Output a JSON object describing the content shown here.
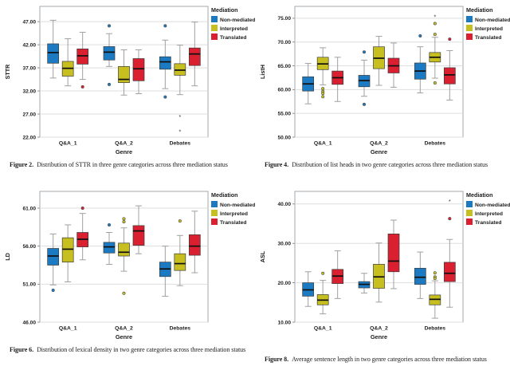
{
  "page": {
    "background": "#ffffff"
  },
  "legend": {
    "title": "Mediation",
    "items": [
      {
        "label": "Non-mediated",
        "color": "#1b7ac1"
      },
      {
        "label": "Interpreted",
        "color": "#c6bf1f"
      },
      {
        "label": "Translated",
        "color": "#d91f30"
      }
    ]
  },
  "chart_data": [
    {
      "id": "fig2",
      "type": "box",
      "ylabel": "STTR",
      "xlabel": "Genre",
      "ydomain": [
        22,
        50.3
      ],
      "yticks": [
        {
          "v": 47,
          "label": "47.00"
        },
        {
          "v": 42,
          "label": "42.00"
        },
        {
          "v": 37,
          "label": "37.00"
        },
        {
          "v": 32,
          "label": "32.00"
        },
        {
          "v": 27,
          "label": "27.00"
        },
        {
          "v": 22,
          "label": "22.00"
        }
      ],
      "categories": [
        "Q&A_1",
        "Q&A_2",
        "Debates"
      ],
      "series": [
        {
          "name": "Non-mediated",
          "boxes": [
            {
              "lo": 34.8,
              "q1": 38.0,
              "med": 40.3,
              "q3": 42.2,
              "hi": 47.3
            },
            {
              "lo": 37.3,
              "q1": 38.7,
              "med": 40.4,
              "q3": 41.6,
              "hi": 44.4,
              "out": [
                46.1,
                33.4
              ]
            },
            {
              "lo": 32.5,
              "q1": 36.7,
              "med": 38.3,
              "q3": 39.4,
              "hi": 43.0,
              "out": [
                46.1,
                30.7
              ]
            }
          ]
        },
        {
          "name": "Interpreted",
          "boxes": [
            {
              "lo": 33.1,
              "q1": 35.2,
              "med": 36.9,
              "q3": 38.4,
              "hi": 43.3
            },
            {
              "lo": 31.1,
              "q1": 33.8,
              "med": 34.5,
              "q3": 37.3,
              "hi": 40.9
            },
            {
              "lo": 31.2,
              "q1": 35.4,
              "med": 36.5,
              "q3": 37.9,
              "hi": 41.9,
              "ext": [
                26.4,
                23.2
              ]
            }
          ]
        },
        {
          "name": "Translated",
          "boxes": [
            {
              "lo": 34.5,
              "q1": 37.8,
              "med": 39.6,
              "q3": 41.1,
              "hi": 44.7,
              "out": [
                32.9
              ]
            },
            {
              "lo": 31.4,
              "q1": 34.2,
              "med": 36.8,
              "q3": 39.0,
              "hi": 40.9
            },
            {
              "lo": 33.1,
              "q1": 37.5,
              "med": 40.0,
              "q3": 41.3,
              "hi": 46.9
            }
          ]
        }
      ],
      "caption": {
        "label": "Figure 2.",
        "text": "Distribution of STTR in three genre categories across three mediation status"
      }
    },
    {
      "id": "fig4",
      "type": "box",
      "ylabel": "ListH",
      "xlabel": "Genre",
      "ydomain": [
        50,
        77.5
      ],
      "yticks": [
        {
          "v": 75,
          "label": "75.00"
        },
        {
          "v": 70,
          "label": "70.00"
        },
        {
          "v": 65,
          "label": "65.00"
        },
        {
          "v": 60,
          "label": "60.00"
        },
        {
          "v": 55,
          "label": "55.00"
        },
        {
          "v": 50,
          "label": "50.00"
        }
      ],
      "categories": [
        "Q&A_1",
        "Q&A_2",
        "Debates"
      ],
      "series": [
        {
          "name": "Non-mediated",
          "boxes": [
            {
              "lo": 57.0,
              "q1": 59.7,
              "med": 61.2,
              "q3": 62.7,
              "hi": 65.5
            },
            {
              "lo": 58.6,
              "q1": 60.6,
              "med": 61.9,
              "q3": 63.0,
              "hi": 66.2,
              "out": [
                67.9,
                56.9
              ]
            },
            {
              "lo": 59.3,
              "q1": 62.2,
              "med": 63.9,
              "q3": 65.6,
              "hi": 69.0,
              "out": [
                71.3
              ]
            }
          ]
        },
        {
          "name": "Interpreted",
          "boxes": [
            {
              "lo": 61.0,
              "q1": 64.2,
              "med": 65.4,
              "q3": 66.8,
              "hi": 68.8,
              "out": [
                60.2,
                59.6,
                59.2,
                58.5
              ]
            },
            {
              "lo": 60.9,
              "q1": 64.4,
              "med": 66.6,
              "q3": 69.0,
              "hi": 71.2
            },
            {
              "lo": 62.4,
              "q1": 65.8,
              "med": 66.8,
              "q3": 67.8,
              "hi": 71.0,
              "out": [
                73.9,
                71.6,
                61.4
              ],
              "ext": [
                75.3
              ]
            }
          ]
        },
        {
          "name": "Translated",
          "boxes": [
            {
              "lo": 57.5,
              "q1": 61.1,
              "med": 62.5,
              "q3": 63.9,
              "hi": 66.8
            },
            {
              "lo": 60.5,
              "q1": 63.5,
              "med": 65.0,
              "q3": 66.6,
              "hi": 69.8
            },
            {
              "lo": 57.8,
              "q1": 61.2,
              "med": 63.1,
              "q3": 64.6,
              "hi": 68.2,
              "out": [
                70.6
              ]
            }
          ]
        }
      ],
      "caption": {
        "label": "Figure 4.",
        "text": "Distribution of list heads in two genre categories across three mediation status"
      }
    },
    {
      "id": "fig6",
      "type": "box",
      "ylabel": "LD",
      "xlabel": "Genre",
      "ydomain": [
        46,
        63.2
      ],
      "yticks": [
        {
          "v": 61,
          "label": "61.00"
        },
        {
          "v": 56,
          "label": "56.00"
        },
        {
          "v": 51,
          "label": "51.00"
        },
        {
          "v": 46,
          "label": "46.00"
        }
      ],
      "categories": [
        "Q&A_1",
        "Q&A_2",
        "Debates"
      ],
      "series": [
        {
          "name": "Non-mediated",
          "boxes": [
            {
              "lo": 50.9,
              "q1": 53.5,
              "med": 54.7,
              "q3": 55.7,
              "hi": 57.6,
              "out": [
                50.2
              ]
            },
            {
              "lo": 53.6,
              "q1": 55.1,
              "med": 55.9,
              "q3": 56.5,
              "hi": 57.8,
              "out": [
                58.8
              ]
            },
            {
              "lo": 49.4,
              "q1": 52.0,
              "med": 53.0,
              "q3": 53.9,
              "hi": 56.0
            }
          ]
        },
        {
          "name": "Interpreted",
          "boxes": [
            {
              "lo": 51.3,
              "q1": 53.9,
              "med": 55.6,
              "q3": 57.1,
              "hi": 58.8
            },
            {
              "lo": 52.7,
              "q1": 54.7,
              "med": 55.2,
              "q3": 56.4,
              "hi": 58.4,
              "out": [
                59.6,
                59.2,
                49.8
              ]
            },
            {
              "lo": 50.8,
              "q1": 52.8,
              "med": 53.7,
              "q3": 55.0,
              "hi": 57.4,
              "out": [
                59.3
              ]
            }
          ]
        },
        {
          "name": "Translated",
          "boxes": [
            {
              "lo": 54.2,
              "q1": 55.9,
              "med": 56.9,
              "q3": 57.8,
              "hi": 60.3,
              "out": [
                61.0
              ]
            },
            {
              "lo": 55.0,
              "q1": 56.1,
              "med": 58.0,
              "q3": 58.7,
              "hi": 61.3
            },
            {
              "lo": 52.5,
              "q1": 54.8,
              "med": 56.0,
              "q3": 57.5,
              "hi": 60.6
            }
          ]
        }
      ],
      "caption": {
        "label": "Figure 6.",
        "text": "Distribution of lexical density in two genre categories across three mediation status"
      }
    },
    {
      "id": "fig8",
      "type": "box",
      "ylabel": "ASL",
      "xlabel": "Genre",
      "ydomain": [
        10,
        43.2
      ],
      "yticks": [
        {
          "v": 40,
          "label": "40.00"
        },
        {
          "v": 30,
          "label": "30.00"
        },
        {
          "v": 20,
          "label": "20.00"
        },
        {
          "v": 10,
          "label": "10.00"
        }
      ],
      "categories": [
        "Q&A_1",
        "Q&A_2",
        "Debates"
      ],
      "series": [
        {
          "name": "Non-mediated",
          "boxes": [
            {
              "lo": 14.0,
              "q1": 16.6,
              "med": 18.2,
              "q3": 20.0,
              "hi": 22.8
            },
            {
              "lo": 17.4,
              "q1": 18.7,
              "med": 19.6,
              "q3": 20.3,
              "hi": 22.4
            },
            {
              "lo": 16.0,
              "q1": 19.6,
              "med": 21.4,
              "q3": 23.7,
              "hi": 27.8
            }
          ]
        },
        {
          "name": "Interpreted",
          "boxes": [
            {
              "lo": 12.1,
              "q1": 14.4,
              "med": 15.6,
              "q3": 17.0,
              "hi": 20.6,
              "out": [
                22.4
              ]
            },
            {
              "lo": 15.1,
              "q1": 18.6,
              "med": 21.5,
              "q3": 24.7,
              "hi": 30.1
            },
            {
              "lo": 11.0,
              "q1": 14.4,
              "med": 15.8,
              "q3": 16.9,
              "hi": 20.5,
              "out": [
                22.5,
                21.5,
                21.1
              ]
            }
          ]
        },
        {
          "name": "Translated",
          "boxes": [
            {
              "lo": 16.0,
              "q1": 19.8,
              "med": 21.7,
              "q3": 23.4,
              "hi": 28.1
            },
            {
              "lo": 18.5,
              "q1": 22.8,
              "med": 25.5,
              "q3": 32.4,
              "hi": 35.9
            },
            {
              "lo": 13.8,
              "q1": 20.3,
              "med": 22.4,
              "q3": 25.2,
              "hi": 31.0,
              "out": [
                36.3
              ],
              "ext": [
                40.6
              ]
            }
          ]
        }
      ],
      "caption": {
        "label": "Figure 8.",
        "text": "Average sentence length in two genre categories across three mediation status"
      }
    }
  ]
}
